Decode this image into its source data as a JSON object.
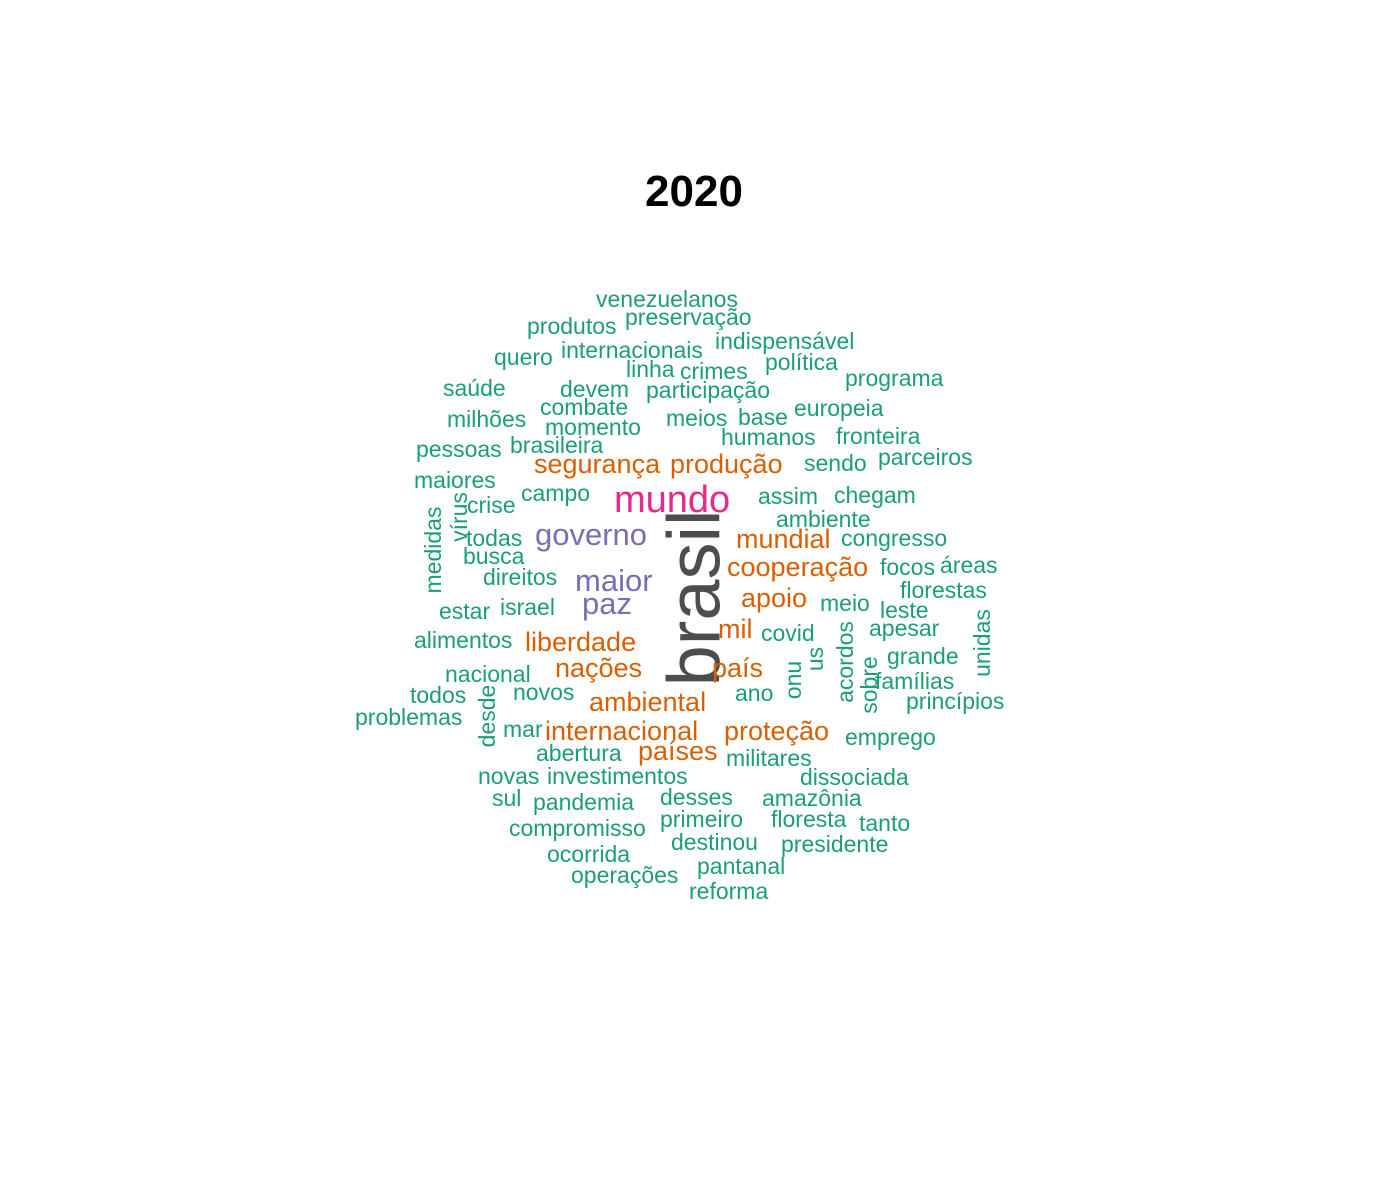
{
  "chart_data": {
    "type": "wordcloud",
    "title": "2020",
    "colors": {
      "tier1": "#4d4d4d",
      "tier2": "#e7298a",
      "tier3": "#7570b3",
      "tier4": "#d95f02",
      "tier5": "#1b9e77"
    },
    "words": [
      {
        "text": "brasil",
        "tier": 1,
        "rot": -90
      },
      {
        "text": "mundo",
        "tier": 2
      },
      {
        "text": "governo",
        "tier": 3
      },
      {
        "text": "maior",
        "tier": 3
      },
      {
        "text": "paz",
        "tier": 3
      },
      {
        "text": "segurança",
        "tier": 4
      },
      {
        "text": "produção",
        "tier": 4
      },
      {
        "text": "mundial",
        "tier": 4
      },
      {
        "text": "cooperação",
        "tier": 4
      },
      {
        "text": "apoio",
        "tier": 4
      },
      {
        "text": "mil",
        "tier": 4
      },
      {
        "text": "liberdade",
        "tier": 4
      },
      {
        "text": "nações",
        "tier": 4
      },
      {
        "text": "país",
        "tier": 4
      },
      {
        "text": "ambiental",
        "tier": 4
      },
      {
        "text": "internacional",
        "tier": 4
      },
      {
        "text": "proteção",
        "tier": 4
      },
      {
        "text": "países",
        "tier": 4
      },
      {
        "text": "venezuelanos",
        "tier": 5
      },
      {
        "text": "preservação",
        "tier": 5
      },
      {
        "text": "produtos",
        "tier": 5
      },
      {
        "text": "indispensável",
        "tier": 5
      },
      {
        "text": "quero",
        "tier": 5
      },
      {
        "text": "internacionais",
        "tier": 5
      },
      {
        "text": "política",
        "tier": 5
      },
      {
        "text": "linha",
        "tier": 5
      },
      {
        "text": "crimes",
        "tier": 5
      },
      {
        "text": "programa",
        "tier": 5
      },
      {
        "text": "saúde",
        "tier": 5
      },
      {
        "text": "devem",
        "tier": 5
      },
      {
        "text": "participação",
        "tier": 5
      },
      {
        "text": "combate",
        "tier": 5
      },
      {
        "text": "europeia",
        "tier": 5
      },
      {
        "text": "milhões",
        "tier": 5
      },
      {
        "text": "meios",
        "tier": 5
      },
      {
        "text": "base",
        "tier": 5
      },
      {
        "text": "momento",
        "tier": 5
      },
      {
        "text": "humanos",
        "tier": 5
      },
      {
        "text": "fronteira",
        "tier": 5
      },
      {
        "text": "pessoas",
        "tier": 5
      },
      {
        "text": "brasileira",
        "tier": 5
      },
      {
        "text": "sendo",
        "tier": 5
      },
      {
        "text": "parceiros",
        "tier": 5
      },
      {
        "text": "maiores",
        "tier": 5
      },
      {
        "text": "campo",
        "tier": 5
      },
      {
        "text": "assim",
        "tier": 5
      },
      {
        "text": "chegam",
        "tier": 5
      },
      {
        "text": "vírus",
        "tier": 5,
        "rot": -90
      },
      {
        "text": "crise",
        "tier": 5
      },
      {
        "text": "medidas",
        "tier": 5,
        "rot": -90
      },
      {
        "text": "ambiente",
        "tier": 5
      },
      {
        "text": "todas",
        "tier": 5
      },
      {
        "text": "congresso",
        "tier": 5
      },
      {
        "text": "busca",
        "tier": 5
      },
      {
        "text": "focos",
        "tier": 5
      },
      {
        "text": "áreas",
        "tier": 5
      },
      {
        "text": "direitos",
        "tier": 5
      },
      {
        "text": "florestas",
        "tier": 5
      },
      {
        "text": "meio",
        "tier": 5
      },
      {
        "text": "estar",
        "tier": 5
      },
      {
        "text": "israel",
        "tier": 5
      },
      {
        "text": "leste",
        "tier": 5
      },
      {
        "text": "unidas",
        "tier": 5,
        "rot": -90
      },
      {
        "text": "apesar",
        "tier": 5
      },
      {
        "text": "acordos",
        "tier": 5,
        "rot": -90
      },
      {
        "text": "covid",
        "tier": 5
      },
      {
        "text": "alimentos",
        "tier": 5
      },
      {
        "text": "us",
        "tier": 5,
        "rot": -90
      },
      {
        "text": "grande",
        "tier": 5
      },
      {
        "text": "onu",
        "tier": 5,
        "rot": -90
      },
      {
        "text": "sobre",
        "tier": 5,
        "rot": -90
      },
      {
        "text": "nacional",
        "tier": 5
      },
      {
        "text": "famílias",
        "tier": 5
      },
      {
        "text": "todos",
        "tier": 5
      },
      {
        "text": "desde",
        "tier": 5,
        "rot": -90
      },
      {
        "text": "novos",
        "tier": 5
      },
      {
        "text": "ano",
        "tier": 5
      },
      {
        "text": "princípios",
        "tier": 5
      },
      {
        "text": "problemas",
        "tier": 5
      },
      {
        "text": "mar",
        "tier": 5
      },
      {
        "text": "emprego",
        "tier": 5
      },
      {
        "text": "abertura",
        "tier": 5
      },
      {
        "text": "militares",
        "tier": 5
      },
      {
        "text": "novas",
        "tier": 5
      },
      {
        "text": "investimentos",
        "tier": 5
      },
      {
        "text": "dissociada",
        "tier": 5
      },
      {
        "text": "sul",
        "tier": 5
      },
      {
        "text": "pandemia",
        "tier": 5
      },
      {
        "text": "desses",
        "tier": 5
      },
      {
        "text": "amazônia",
        "tier": 5
      },
      {
        "text": "primeiro",
        "tier": 5
      },
      {
        "text": "floresta",
        "tier": 5
      },
      {
        "text": "compromisso",
        "tier": 5
      },
      {
        "text": "tanto",
        "tier": 5
      },
      {
        "text": "destinou",
        "tier": 5
      },
      {
        "text": "presidente",
        "tier": 5
      },
      {
        "text": "ocorrida",
        "tier": 5
      },
      {
        "text": "pantanal",
        "tier": 5
      },
      {
        "text": "operações",
        "tier": 5
      },
      {
        "text": "reforma",
        "tier": 5
      }
    ]
  }
}
